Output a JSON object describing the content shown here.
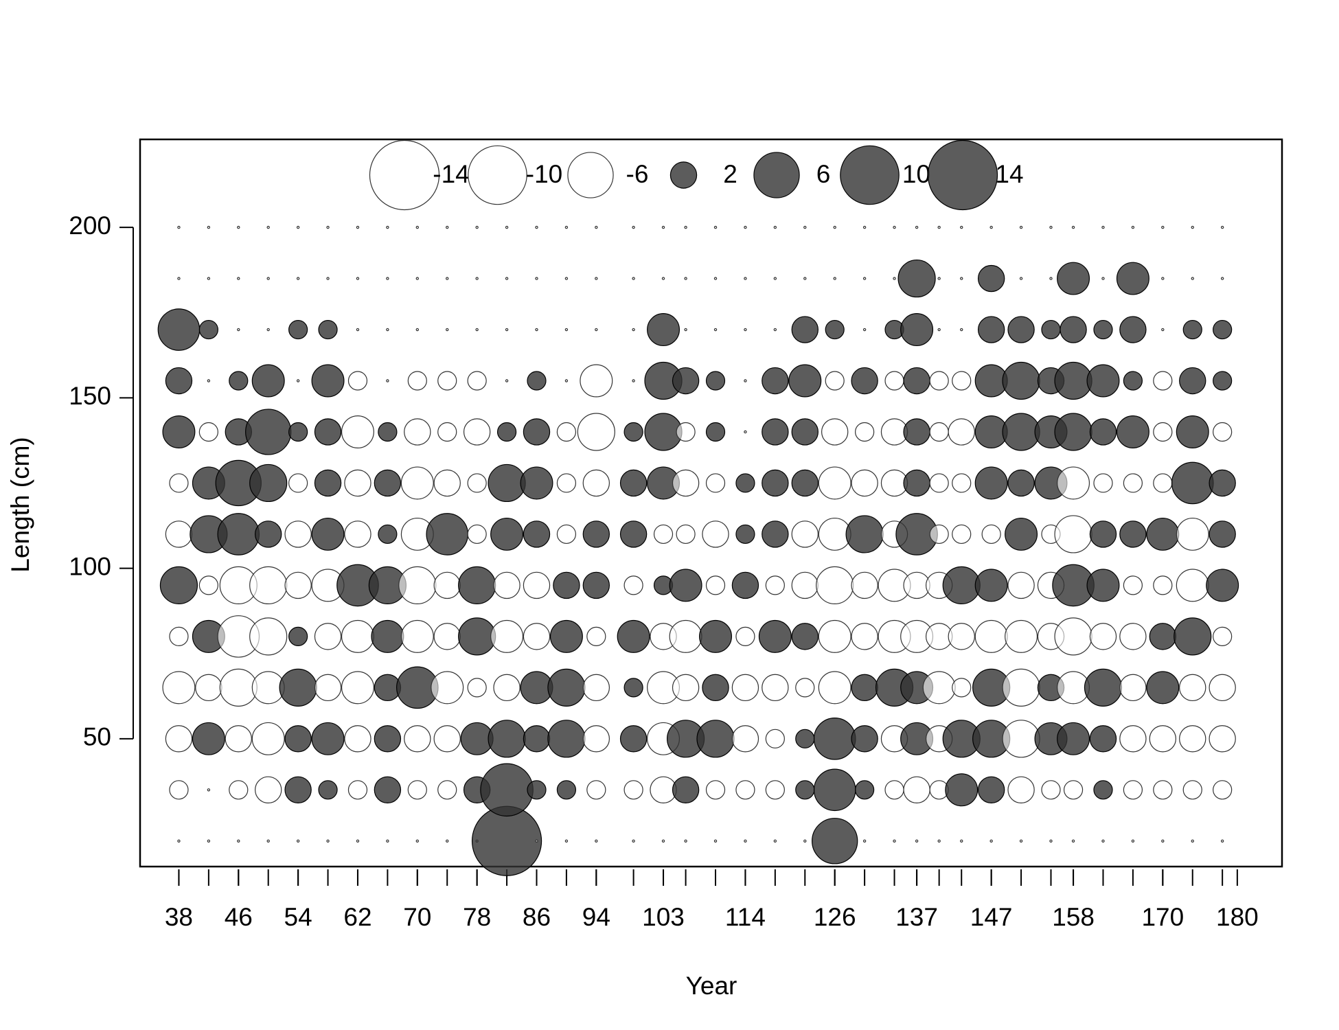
{
  "chart_data": {
    "type": "bubble",
    "x_label": "Year",
    "y_label": "Length (cm)",
    "xlim": [
      32.8,
      186
    ],
    "ylim": [
      12.5,
      225.8
    ],
    "xticks": [
      38,
      46,
      54,
      62,
      70,
      78,
      86,
      94,
      103,
      114,
      126,
      137,
      147,
      158,
      170,
      180
    ],
    "yticks": [
      50,
      100,
      150,
      200
    ],
    "positive_color": "#333333",
    "negative_color": "#ffffff",
    "legend_sizes": [
      -14,
      -10,
      -6,
      2,
      6,
      10,
      14
    ],
    "x": [
      38,
      42,
      46,
      50,
      54,
      58,
      62,
      66,
      70,
      74,
      78,
      82,
      86,
      90,
      94,
      99,
      103,
      106,
      110,
      114,
      118,
      122,
      126,
      130,
      134,
      137,
      140,
      143,
      147,
      151,
      155,
      158,
      162,
      166,
      170,
      174,
      178
    ],
    "lengths": [
      20,
      35,
      50,
      65,
      80,
      95,
      110,
      125,
      140,
      155,
      170,
      185,
      200
    ],
    "residuals": [
      [
        0,
        -1,
        -2,
        -3,
        -1,
        4,
        -2,
        -1,
        3,
        2,
        5,
        0,
        0
      ],
      [
        0,
        0,
        3,
        -2,
        3,
        -1,
        4,
        3,
        -1,
        0,
        1,
        0,
        0
      ],
      [
        0,
        -1,
        -2,
        -4,
        -5,
        -4,
        5,
        6,
        2,
        1,
        0,
        0,
        0
      ],
      [
        0,
        -2,
        -3,
        -3,
        -4,
        -4,
        2,
        4,
        6,
        3,
        0,
        0,
        0
      ],
      [
        0,
        2,
        2,
        4,
        1,
        -2,
        -2,
        -1,
        1,
        0,
        1,
        0,
        0
      ],
      [
        0,
        1,
        3,
        -2,
        -2,
        -3,
        3,
        2,
        2,
        3,
        1,
        0,
        0
      ],
      [
        0,
        -1,
        -2,
        -3,
        -3,
        5,
        -2,
        -2,
        -3,
        -1,
        0,
        0,
        0
      ],
      [
        0,
        2,
        2,
        2,
        3,
        4,
        1,
        2,
        1,
        0,
        0,
        0,
        0
      ],
      [
        0,
        -1,
        -2,
        5,
        -3,
        -4,
        -3,
        -3,
        -2,
        -1,
        0,
        0,
        0
      ],
      [
        0,
        -1,
        -2,
        -3,
        -2,
        -2,
        5,
        -2,
        -1,
        -1,
        0,
        0,
        0
      ],
      [
        0,
        2,
        3,
        -1,
        4,
        4,
        -1,
        -1,
        -2,
        -1,
        0,
        0,
        0
      ],
      [
        14,
        8,
        4,
        -2,
        -3,
        -2,
        3,
        4,
        1,
        0,
        0,
        0,
        0
      ],
      [
        0,
        1,
        2,
        3,
        -2,
        -2,
        2,
        3,
        2,
        1,
        0,
        0,
        0
      ],
      [
        0,
        1,
        4,
        4,
        3,
        2,
        -1,
        -1,
        -1,
        0,
        0,
        0,
        0
      ],
      [
        0,
        -1,
        -2,
        -2,
        -1,
        2,
        2,
        -2,
        -4,
        -3,
        0,
        0,
        0
      ],
      [
        0,
        -1,
        2,
        1,
        3,
        -1,
        2,
        2,
        1,
        0,
        0,
        0,
        0
      ],
      [
        0,
        -2,
        -3,
        -3,
        -2,
        1,
        -1,
        3,
        4,
        4,
        3,
        0,
        0
      ],
      [
        0,
        2,
        4,
        -2,
        -3,
        3,
        -1,
        -2,
        -1,
        2,
        0,
        0,
        0
      ],
      [
        0,
        -1,
        4,
        2,
        3,
        -1,
        -2,
        -1,
        1,
        1,
        0,
        0,
        0
      ],
      [
        0,
        -1,
        -2,
        -2,
        -1,
        2,
        1,
        1,
        0,
        0,
        0,
        0,
        0
      ],
      [
        0,
        -1,
        -1,
        -2,
        3,
        -1,
        2,
        2,
        2,
        2,
        0,
        0,
        0
      ],
      [
        0,
        1,
        1,
        -1,
        2,
        -2,
        -2,
        2,
        2,
        3,
        2,
        0,
        0
      ],
      [
        6,
        5,
        5,
        -3,
        -3,
        -4,
        -3,
        -3,
        -2,
        -1,
        1,
        0,
        0
      ],
      [
        0,
        1,
        2,
        2,
        -2,
        -2,
        4,
        -2,
        -1,
        2,
        0,
        0,
        0
      ],
      [
        0,
        -1,
        -2,
        4,
        -3,
        -3,
        -2,
        -2,
        -2,
        -1,
        1,
        0,
        0
      ],
      [
        0,
        -2,
        3,
        3,
        -3,
        -2,
        5,
        2,
        2,
        2,
        3,
        4,
        0
      ],
      [
        0,
        -1,
        -2,
        -3,
        -2,
        -2,
        -1,
        -1,
        -1,
        -1,
        0,
        0,
        0
      ],
      [
        0,
        3,
        4,
        -1,
        -2,
        4,
        -1,
        -1,
        -2,
        -1,
        0,
        0,
        0
      ],
      [
        0,
        2,
        4,
        4,
        -3,
        3,
        -1,
        3,
        3,
        3,
        2,
        2,
        0
      ],
      [
        0,
        -2,
        -4,
        -4,
        -3,
        -2,
        3,
        2,
        4,
        4,
        2,
        0,
        0
      ],
      [
        0,
        -1,
        3,
        2,
        -2,
        -2,
        -1,
        3,
        3,
        2,
        1,
        0,
        0
      ],
      [
        0,
        -1,
        3,
        -3,
        -4,
        5,
        -4,
        -3,
        4,
        4,
        2,
        3,
        0
      ],
      [
        0,
        1,
        2,
        4,
        -2,
        3,
        2,
        -1,
        2,
        3,
        1,
        0,
        0
      ],
      [
        0,
        -1,
        -2,
        -2,
        -2,
        -1,
        2,
        -1,
        3,
        1,
        2,
        3,
        0
      ],
      [
        0,
        -1,
        -2,
        3,
        2,
        -1,
        3,
        -1,
        -1,
        -1,
        0,
        0,
        0
      ],
      [
        0,
        -1,
        -2,
        -2,
        4,
        -3,
        -3,
        5,
        3,
        2,
        1,
        0,
        0
      ],
      [
        0,
        -1,
        -2,
        -2,
        -1,
        3,
        2,
        2,
        -1,
        1,
        1,
        0,
        0
      ]
    ]
  }
}
